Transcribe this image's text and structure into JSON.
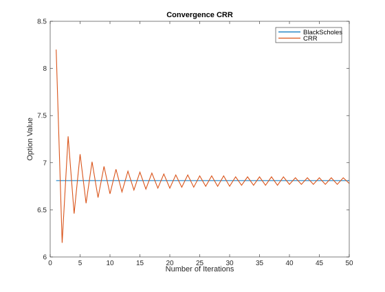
{
  "chart_data": {
    "type": "line",
    "title": "Convergence CRR",
    "xlabel": "Number of Iterations",
    "ylabel": "Option Value",
    "xlim": [
      0,
      50
    ],
    "ylim": [
      6,
      8.5
    ],
    "xticks": [
      "0",
      "5",
      "10",
      "15",
      "20",
      "25",
      "30",
      "35",
      "40",
      "45",
      "50"
    ],
    "yticks": [
      "6",
      "6.5",
      "7",
      "7.5",
      "8",
      "8.5"
    ],
    "grid": false,
    "legend_position": "top-right",
    "x": [
      1,
      2,
      3,
      4,
      5,
      6,
      7,
      8,
      9,
      10,
      11,
      12,
      13,
      14,
      15,
      16,
      17,
      18,
      19,
      20,
      21,
      22,
      23,
      24,
      25,
      26,
      27,
      28,
      29,
      30,
      31,
      32,
      33,
      34,
      35,
      36,
      37,
      38,
      39,
      40,
      41,
      42,
      43,
      44,
      45,
      46,
      47,
      48,
      49,
      50
    ],
    "series": [
      {
        "name": "BlackScholes",
        "color": "#0072BD",
        "x": [
          1,
          50
        ],
        "values": [
          6.81,
          6.81
        ]
      },
      {
        "name": "CRR",
        "color": "#D95319",
        "values": [
          8.2,
          6.15,
          7.28,
          6.46,
          7.09,
          6.57,
          7.01,
          6.63,
          6.96,
          6.67,
          6.93,
          6.69,
          6.91,
          6.71,
          6.9,
          6.72,
          6.89,
          6.73,
          6.88,
          6.73,
          6.87,
          6.74,
          6.87,
          6.74,
          6.86,
          6.75,
          6.86,
          6.75,
          6.86,
          6.75,
          6.85,
          6.76,
          6.85,
          6.76,
          6.85,
          6.76,
          6.85,
          6.76,
          6.85,
          6.77,
          6.84,
          6.77,
          6.84,
          6.77,
          6.84,
          6.77,
          6.84,
          6.77,
          6.84,
          6.78
        ]
      }
    ]
  }
}
